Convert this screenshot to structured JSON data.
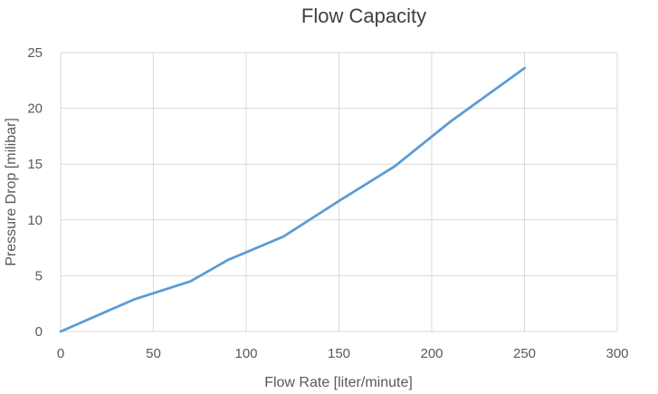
{
  "chart_data": {
    "type": "line",
    "title": "Flow Capacity",
    "xlabel": "Flow Rate [liter/minute]",
    "ylabel": "Pressure Drop [milibar]",
    "xlim": [
      0,
      300
    ],
    "ylim": [
      0,
      25
    ],
    "xticks": [
      0,
      50,
      100,
      150,
      200,
      250,
      300
    ],
    "yticks": [
      0,
      5,
      10,
      15,
      20,
      25
    ],
    "grid": true,
    "legend": "none",
    "series": [
      {
        "color": "#5b9bd5",
        "x": [
          0,
          40,
          70,
          90,
          120,
          150,
          180,
          210,
          250
        ],
        "y": [
          0,
          2.9,
          4.5,
          6.4,
          8.5,
          11.7,
          14.8,
          18.8,
          23.6
        ]
      }
    ]
  }
}
